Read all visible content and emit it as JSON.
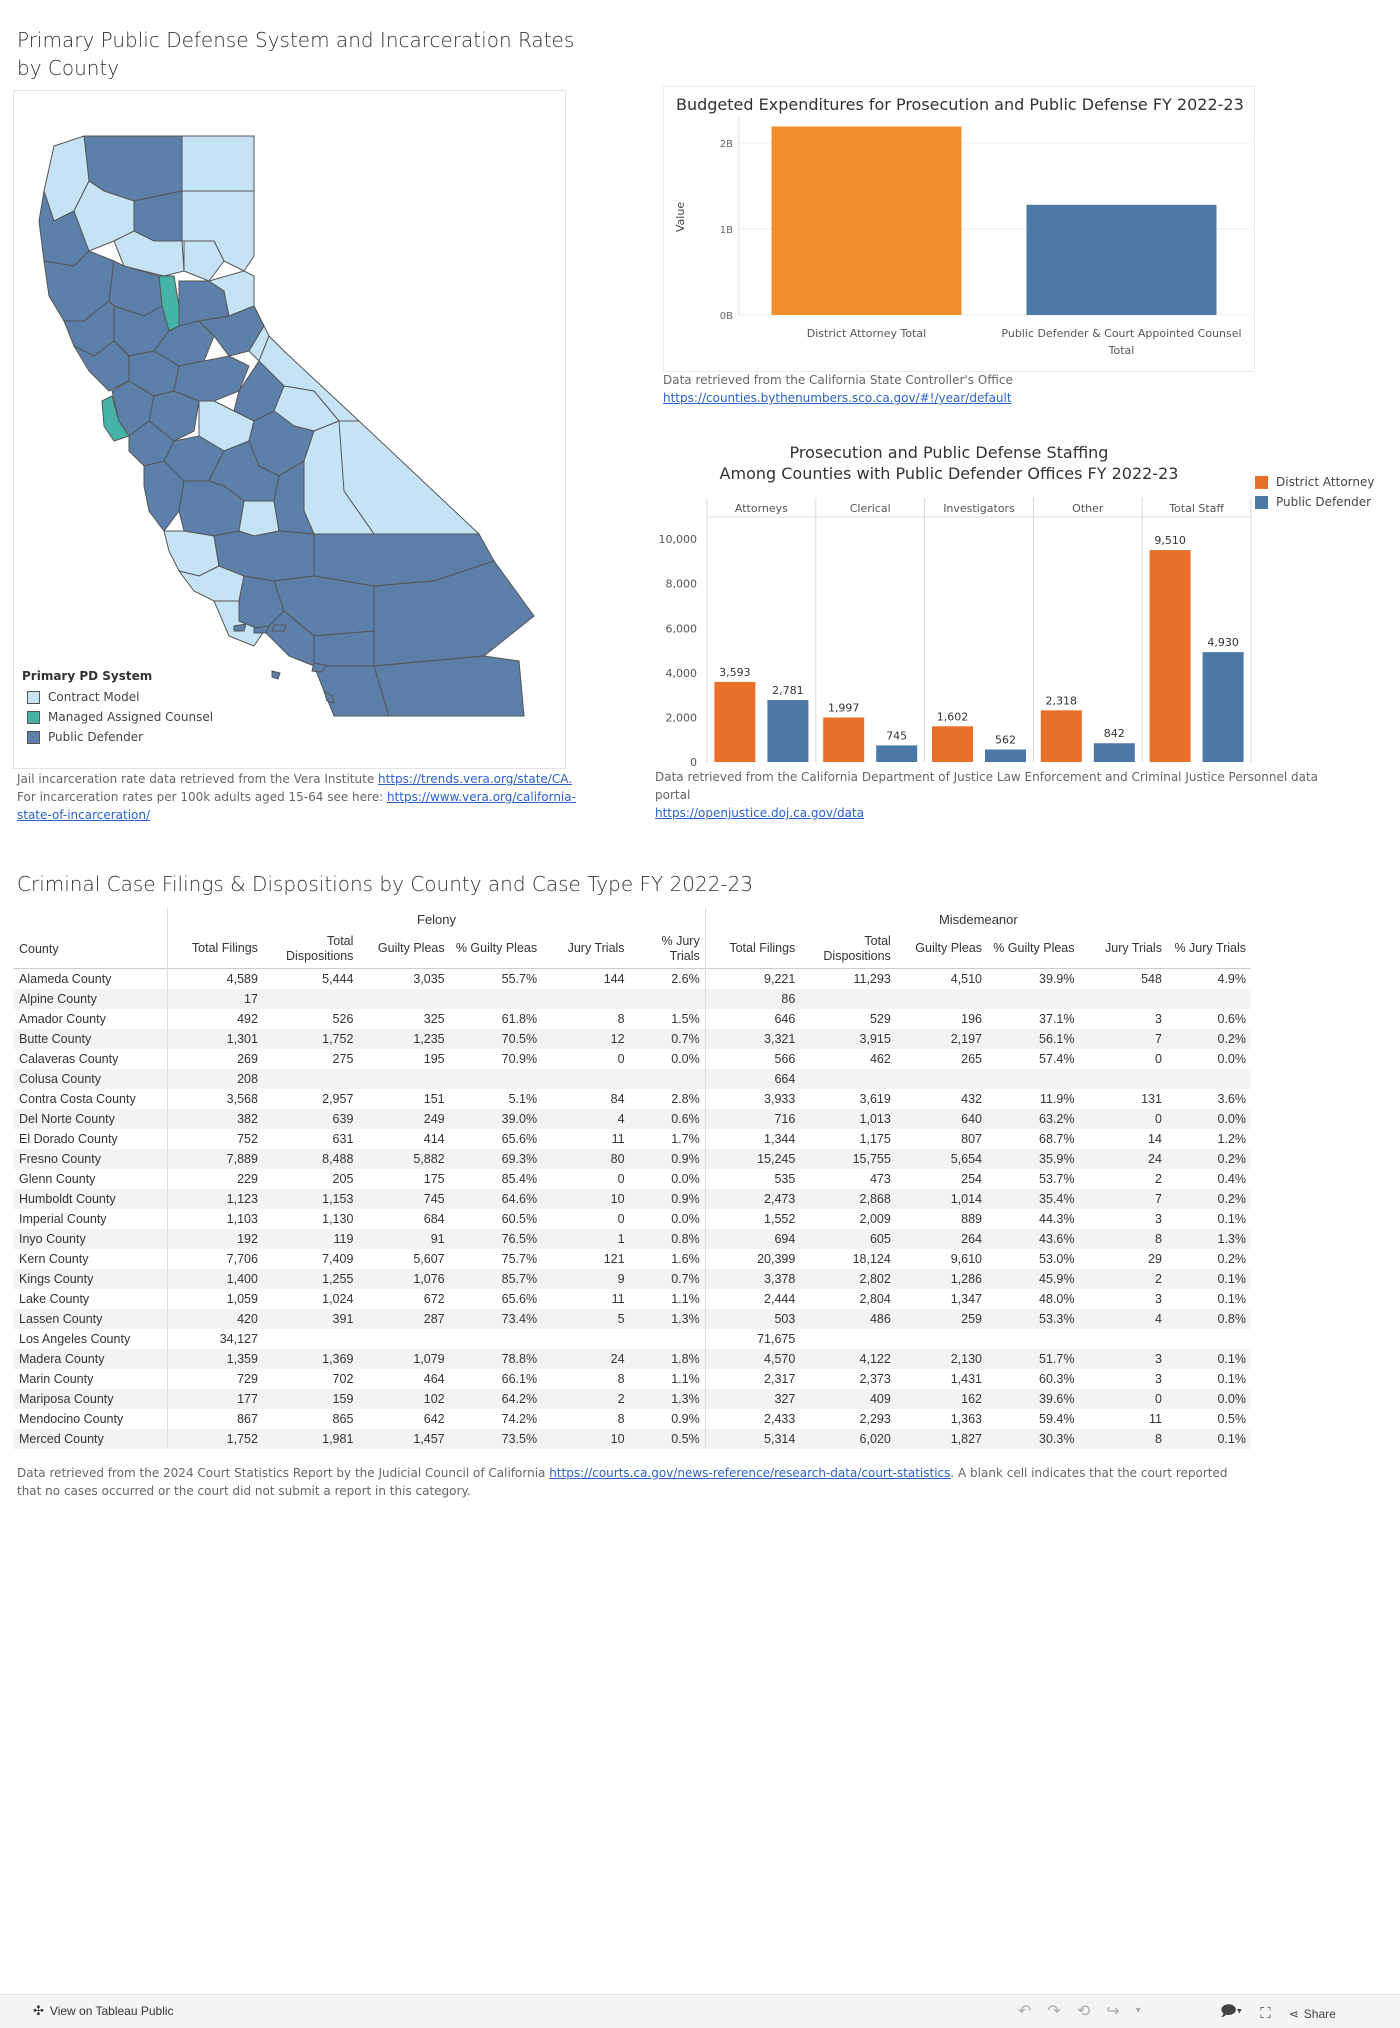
{
  "map_section": {
    "title_line1": "Primary Public Defense System and Incarceration Rates",
    "title_line2": "by County",
    "legend_title": "Primary PD System",
    "legend_items": [
      {
        "label": "Contract Model",
        "color": "#c6e3f5"
      },
      {
        "label": "Managed Assigned Counsel",
        "color": "#45b3a5"
      },
      {
        "label": "Public Defender",
        "color": "#5c80aa"
      }
    ],
    "note_text1": "Jail incarceration rate data retrieved from the Vera Institute ",
    "note_link1": "https://trends.vera.org/state/CA.",
    "note_text2": "  For incarceration rates per 100k adults aged 15-64 see here: ",
    "note_link2": "https://www.vera.org/california-state-of-incarceration/"
  },
  "budget_chart": {
    "note_text": "Data retrieved from the California State Controller's Office ",
    "note_link": "https://counties.bythenumbers.sco.ca.gov/#!/year/default"
  },
  "staffing_chart": {
    "legend": [
      {
        "label": "District Attorney",
        "color": "#e8702a"
      },
      {
        "label": "Public Defender",
        "color": "#4c78a8"
      }
    ],
    "note_text": "Data retrieved from the California Department of Justice Law Enforcement and Criminal Justice Personnel data portal",
    "note_link": "https://openjustice.doj.ca.gov/data"
  },
  "chart_data": [
    {
      "type": "bar",
      "title": "Budgeted Expenditures for Prosecution and Public Defense FY 2022-23",
      "categories": [
        "District Attorney Total",
        "Public Defender & Court Appointed Counsel Total"
      ],
      "values": [
        2.19,
        1.28
      ],
      "unit": "B",
      "colors": [
        "#f28e2b",
        "#4e79a7"
      ],
      "ylabel": "Value",
      "ylim": [
        0,
        2.3
      ],
      "yticks": [
        {
          "v": 0,
          "label": "0B"
        },
        {
          "v": 1,
          "label": "1B"
        },
        {
          "v": 2,
          "label": "2B"
        }
      ],
      "grid": true
    },
    {
      "type": "bar",
      "title_line1": "Prosecution and Public Defense Staffing",
      "title_line2": "Among Counties with Public Defender Offices FY 2022-23",
      "panels": [
        "Attorneys",
        "Clerical",
        "Investigators",
        "Other",
        "Total Staff"
      ],
      "series": [
        {
          "name": "District Attorney",
          "color": "#e8702a",
          "values": [
            3593,
            1997,
            1602,
            2318,
            9510
          ],
          "labels": [
            "3,593",
            "1,997",
            "1,602",
            "2,318",
            "9,510"
          ]
        },
        {
          "name": "Public Defender",
          "color": "#4c78a8",
          "values": [
            2781,
            745,
            562,
            842,
            4930
          ],
          "labels": [
            "2,781",
            "745",
            "562",
            "842",
            "4,930"
          ]
        }
      ],
      "ylim": [
        0,
        10500
      ],
      "yticks": [
        {
          "v": 0,
          "label": "0"
        },
        {
          "v": 2000,
          "label": "2,000"
        },
        {
          "v": 4000,
          "label": "4,000"
        },
        {
          "v": 6000,
          "label": "6,000"
        },
        {
          "v": 8000,
          "label": "8,000"
        },
        {
          "v": 10000,
          "label": "10,000"
        }
      ],
      "legend_position": "right"
    },
    {
      "type": "table",
      "title": "Criminal Case Filings & Dispositions by County and Case Type FY 2022-23",
      "groups": [
        "Felony",
        "Misdemeanor"
      ],
      "row_header": "County",
      "columns": [
        "Total Filings",
        "Total Dispositions",
        "Guilty Pleas",
        "% Guilty Pleas",
        "Jury Trials",
        "% Jury Trials"
      ],
      "rows": [
        [
          "Alameda County",
          "4,589",
          "5,444",
          "3,035",
          "55.7%",
          "144",
          "2.6%",
          "9,221",
          "11,293",
          "4,510",
          "39.9%",
          "548",
          "4.9%"
        ],
        [
          "Alpine County",
          "17",
          "",
          "",
          "",
          "",
          "",
          "86",
          "",
          "",
          "",
          "",
          ""
        ],
        [
          "Amador County",
          "492",
          "526",
          "325",
          "61.8%",
          "8",
          "1.5%",
          "646",
          "529",
          "196",
          "37.1%",
          "3",
          "0.6%"
        ],
        [
          "Butte County",
          "1,301",
          "1,752",
          "1,235",
          "70.5%",
          "12",
          "0.7%",
          "3,321",
          "3,915",
          "2,197",
          "56.1%",
          "7",
          "0.2%"
        ],
        [
          "Calaveras County",
          "269",
          "275",
          "195",
          "70.9%",
          "0",
          "0.0%",
          "566",
          "462",
          "265",
          "57.4%",
          "0",
          "0.0%"
        ],
        [
          "Colusa County",
          "208",
          "",
          "",
          "",
          "",
          "",
          "664",
          "",
          "",
          "",
          "",
          ""
        ],
        [
          "Contra Costa County",
          "3,568",
          "2,957",
          "151",
          "5.1%",
          "84",
          "2.8%",
          "3,933",
          "3,619",
          "432",
          "11.9%",
          "131",
          "3.6%"
        ],
        [
          "Del Norte County",
          "382",
          "639",
          "249",
          "39.0%",
          "4",
          "0.6%",
          "716",
          "1,013",
          "640",
          "63.2%",
          "0",
          "0.0%"
        ],
        [
          "El Dorado County",
          "752",
          "631",
          "414",
          "65.6%",
          "11",
          "1.7%",
          "1,344",
          "1,175",
          "807",
          "68.7%",
          "14",
          "1.2%"
        ],
        [
          "Fresno County",
          "7,889",
          "8,488",
          "5,882",
          "69.3%",
          "80",
          "0.9%",
          "15,245",
          "15,755",
          "5,654",
          "35.9%",
          "24",
          "0.2%"
        ],
        [
          "Glenn County",
          "229",
          "205",
          "175",
          "85.4%",
          "0",
          "0.0%",
          "535",
          "473",
          "254",
          "53.7%",
          "2",
          "0.4%"
        ],
        [
          "Humboldt County",
          "1,123",
          "1,153",
          "745",
          "64.6%",
          "10",
          "0.9%",
          "2,473",
          "2,868",
          "1,014",
          "35.4%",
          "7",
          "0.2%"
        ],
        [
          "Imperial County",
          "1,103",
          "1,130",
          "684",
          "60.5%",
          "0",
          "0.0%",
          "1,552",
          "2,009",
          "889",
          "44.3%",
          "3",
          "0.1%"
        ],
        [
          "Inyo County",
          "192",
          "119",
          "91",
          "76.5%",
          "1",
          "0.8%",
          "694",
          "605",
          "264",
          "43.6%",
          "8",
          "1.3%"
        ],
        [
          "Kern County",
          "7,706",
          "7,409",
          "5,607",
          "75.7%",
          "121",
          "1.6%",
          "20,399",
          "18,124",
          "9,610",
          "53.0%",
          "29",
          "0.2%"
        ],
        [
          "Kings County",
          "1,400",
          "1,255",
          "1,076",
          "85.7%",
          "9",
          "0.7%",
          "3,378",
          "2,802",
          "1,286",
          "45.9%",
          "2",
          "0.1%"
        ],
        [
          "Lake County",
          "1,059",
          "1,024",
          "672",
          "65.6%",
          "11",
          "1.1%",
          "2,444",
          "2,804",
          "1,347",
          "48.0%",
          "3",
          "0.1%"
        ],
        [
          "Lassen County",
          "420",
          "391",
          "287",
          "73.4%",
          "5",
          "1.3%",
          "503",
          "486",
          "259",
          "53.3%",
          "4",
          "0.8%"
        ],
        [
          "Los Angeles County",
          "34,127",
          "",
          "",
          "",
          "",
          "",
          "71,675",
          "",
          "",
          "",
          "",
          ""
        ],
        [
          "Madera County",
          "1,359",
          "1,369",
          "1,079",
          "78.8%",
          "24",
          "1.8%",
          "4,570",
          "4,122",
          "2,130",
          "51.7%",
          "3",
          "0.1%"
        ],
        [
          "Marin County",
          "729",
          "702",
          "464",
          "66.1%",
          "8",
          "1.1%",
          "2,317",
          "2,373",
          "1,431",
          "60.3%",
          "3",
          "0.1%"
        ],
        [
          "Mariposa County",
          "177",
          "159",
          "102",
          "64.2%",
          "2",
          "1.3%",
          "327",
          "409",
          "162",
          "39.6%",
          "0",
          "0.0%"
        ],
        [
          "Mendocino County",
          "867",
          "865",
          "642",
          "74.2%",
          "8",
          "0.9%",
          "2,433",
          "2,293",
          "1,363",
          "59.4%",
          "11",
          "0.5%"
        ],
        [
          "Merced County",
          "1,752",
          "1,981",
          "1,457",
          "73.5%",
          "10",
          "0.5%",
          "5,314",
          "6,020",
          "1,827",
          "30.3%",
          "8",
          "0.1%"
        ]
      ]
    }
  ],
  "table_note": {
    "text1": "Data retrieved from the 2024 Court Statistics Report by the Judicial Council of California ",
    "link": "https://courts.ca.gov/news-reference/research-data/court-statistics",
    "text2": ". A blank cell indicates that the court reported that no cases occurred or the court did not submit a report in this category."
  },
  "footer": {
    "view_label": "View on Tableau Public",
    "share_label": "Share"
  }
}
